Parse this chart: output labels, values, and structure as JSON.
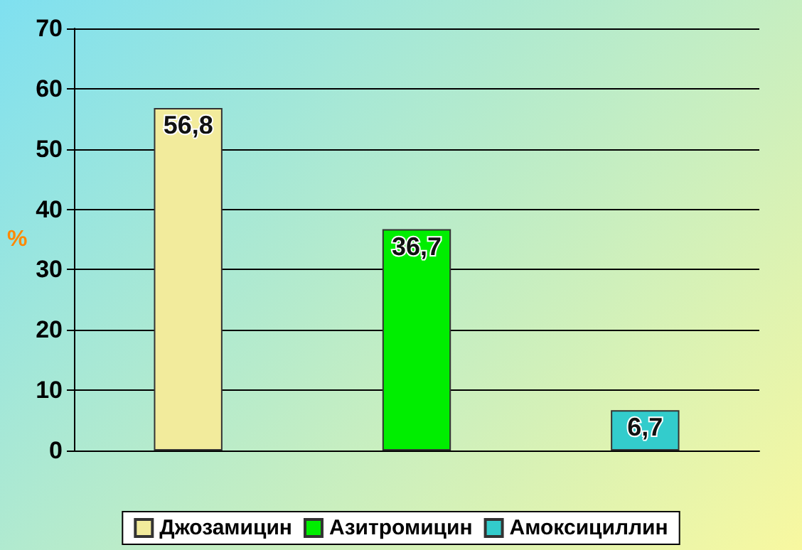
{
  "chart_data": {
    "type": "bar",
    "ylabel": "%",
    "categories": [
      null,
      null,
      null
    ],
    "series": [
      {
        "name": "Джозамицин",
        "color": "#f2eb9c",
        "values": [
          56.8,
          null,
          null
        ],
        "value_labels": [
          "56,8",
          null,
          null
        ]
      },
      {
        "name": "Азитромицин",
        "color": "#00ee00",
        "values": [
          null,
          36.7,
          null
        ],
        "value_labels": [
          null,
          "36,7",
          null
        ]
      },
      {
        "name": "Амоксициллин",
        "color": "#33cccc",
        "values": [
          null,
          null,
          6.7
        ],
        "value_labels": [
          null,
          null,
          "6,7"
        ]
      }
    ],
    "stacked": true,
    "ylim": [
      0,
      70
    ],
    "yticks": [
      0,
      10,
      20,
      30,
      40,
      50,
      60,
      70
    ],
    "grid": "y",
    "legend": "bottom"
  }
}
